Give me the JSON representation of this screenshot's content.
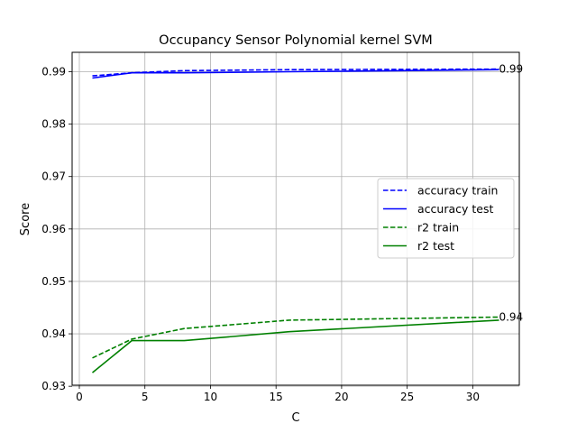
{
  "chart_data": {
    "type": "line",
    "title": "Occupancy Sensor Polynomial kernel SVM",
    "xlabel": "C",
    "ylabel": "Score",
    "xlim": [
      -0.55,
      33.55
    ],
    "ylim": [
      0.9302,
      0.9937
    ],
    "x_ticks": [
      0,
      5,
      10,
      15,
      20,
      25,
      30
    ],
    "y_ticks": [
      0.93,
      0.94,
      0.95,
      0.96,
      0.97,
      0.98,
      0.99
    ],
    "x_tick_labels": [
      "0",
      "5",
      "10",
      "15",
      "20",
      "25",
      "30"
    ],
    "y_tick_labels": [
      "0.93",
      "0.94",
      "0.95",
      "0.96",
      "0.97",
      "0.98",
      "0.99"
    ],
    "grid": true,
    "legend_position": "center-right",
    "series": [
      {
        "name": "accuracy train",
        "color": "#0000ff",
        "dash": "dashed",
        "x": [
          1,
          4,
          8,
          16,
          32
        ],
        "y": [
          0.9892,
          0.9898,
          0.9902,
          0.9904,
          0.9905
        ]
      },
      {
        "name": "accuracy test",
        "color": "#0000ff",
        "dash": "solid",
        "x": [
          1,
          4,
          8,
          16,
          32
        ],
        "y": [
          0.9888,
          0.9898,
          0.9898,
          0.99,
          0.9904
        ]
      },
      {
        "name": "r2 train",
        "color": "#008000",
        "dash": "dashed",
        "x": [
          1,
          4,
          8,
          16,
          32
        ],
        "y": [
          0.9354,
          0.939,
          0.941,
          0.9426,
          0.9432
        ]
      },
      {
        "name": "r2 test",
        "color": "#008000",
        "dash": "solid",
        "x": [
          1,
          4,
          8,
          16,
          32
        ],
        "y": [
          0.9326,
          0.9387,
          0.9387,
          0.9404,
          0.9426
        ]
      }
    ],
    "annotations": [
      {
        "text": "0.99",
        "x": 32,
        "y": 0.9905
      },
      {
        "text": "0.94",
        "x": 32,
        "y": 0.9432
      }
    ]
  }
}
